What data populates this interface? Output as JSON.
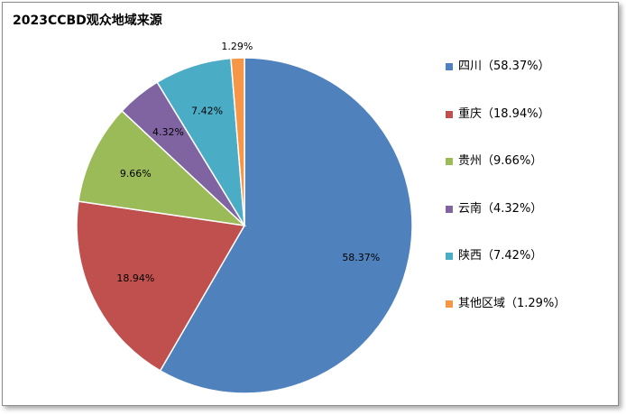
{
  "chart_data": {
    "type": "pie",
    "title": "2023CCBD观众地域来源",
    "categories": [
      "四川",
      "重庆",
      "贵州",
      "云南",
      "陕西",
      "其他区域"
    ],
    "values": [
      58.37,
      18.94,
      9.66,
      4.32,
      7.42,
      1.29
    ],
    "data_labels": [
      "58.37%",
      "18.94%",
      "9.66%",
      "4.32%",
      "7.42%",
      "1.29%"
    ],
    "legend_labels": [
      "四川（58.37%）",
      "重庆（18.94%）",
      "贵州（9.66%）",
      "云南（4.32%）",
      "陕西（7.42%）",
      "其他区域（1.29%）"
    ],
    "colors": [
      "#4f81bd",
      "#c0504d",
      "#9bbb59",
      "#8064a2",
      "#4bacc6",
      "#f79646"
    ],
    "legend_position": "right",
    "start_angle_deg": 0,
    "direction": "clockwise"
  }
}
